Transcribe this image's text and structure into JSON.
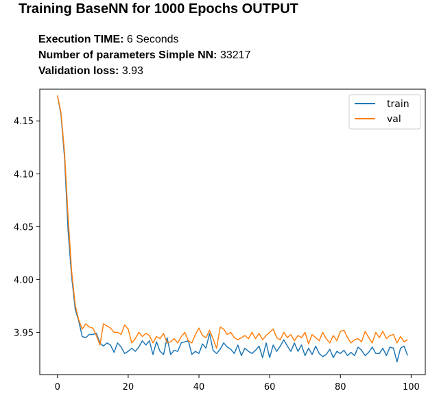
{
  "page": {
    "title": "Training BaseNN for 1000 Epochs OUTPUT"
  },
  "stats": [
    {
      "label": "Execution TIME:",
      "value": "6 Seconds"
    },
    {
      "label": "Number of parameters Simple NN:",
      "value": "33217"
    },
    {
      "label": "Validation loss:",
      "value": "3.93"
    }
  ],
  "colors": {
    "train": "#1f77b4",
    "val": "#ff7f0e"
  },
  "chart_data": {
    "type": "line",
    "title": "",
    "xlabel": "",
    "ylabel": "",
    "xlim": [
      -5,
      104
    ],
    "ylim": [
      3.91,
      4.18
    ],
    "xticks": [
      0,
      20,
      40,
      60,
      80,
      100
    ],
    "xtick_labels": [
      "0",
      "20",
      "40",
      "60",
      "80",
      "100"
    ],
    "yticks": [
      3.95,
      4.0,
      4.05,
      4.1,
      4.15
    ],
    "ytick_labels": [
      "3.95",
      "4.00",
      "4.05",
      "4.10",
      "4.15"
    ],
    "legend": "upper right",
    "grid": false,
    "x": [
      0,
      1,
      2,
      3,
      4,
      5,
      6,
      7,
      8,
      9,
      10,
      11,
      12,
      13,
      14,
      15,
      16,
      17,
      18,
      19,
      20,
      21,
      22,
      23,
      24,
      25,
      26,
      27,
      28,
      29,
      30,
      31,
      32,
      33,
      34,
      35,
      36,
      37,
      38,
      39,
      40,
      41,
      42,
      43,
      44,
      45,
      46,
      47,
      48,
      49,
      50,
      51,
      52,
      53,
      54,
      55,
      56,
      57,
      58,
      59,
      60,
      61,
      62,
      63,
      64,
      65,
      66,
      67,
      68,
      69,
      70,
      71,
      72,
      73,
      74,
      75,
      76,
      77,
      78,
      79,
      80,
      81,
      82,
      83,
      84,
      85,
      86,
      87,
      88,
      89,
      90,
      91,
      92,
      93,
      94,
      95,
      96,
      97,
      98,
      99
    ],
    "series": [
      {
        "name": "train",
        "values": [
          4.174,
          4.156,
          4.115,
          4.047,
          4.003,
          3.972,
          3.961,
          3.946,
          3.945,
          3.948,
          3.948,
          3.949,
          3.94,
          3.937,
          3.94,
          3.938,
          3.931,
          3.94,
          3.936,
          3.93,
          3.932,
          3.935,
          3.932,
          3.936,
          3.942,
          3.938,
          3.942,
          3.929,
          3.941,
          3.932,
          3.929,
          3.945,
          3.929,
          3.933,
          3.932,
          3.94,
          3.941,
          3.942,
          3.929,
          3.932,
          3.93,
          3.939,
          3.935,
          3.949,
          3.933,
          3.93,
          3.934,
          3.94,
          3.936,
          3.934,
          3.93,
          3.938,
          3.928,
          3.935,
          3.932,
          3.93,
          3.933,
          3.937,
          3.926,
          3.94,
          3.926,
          3.938,
          3.932,
          3.937,
          3.943,
          3.937,
          3.932,
          3.94,
          3.932,
          3.938,
          3.928,
          3.935,
          3.929,
          3.937,
          3.93,
          3.927,
          3.929,
          3.934,
          3.926,
          3.932,
          3.93,
          3.933,
          3.928,
          3.931,
          3.928,
          3.936,
          3.933,
          3.928,
          3.931,
          3.936,
          3.93,
          3.93,
          3.935,
          3.928,
          3.936,
          3.935,
          3.922,
          3.935,
          3.937,
          3.928
        ]
      },
      {
        "name": "val",
        "values": [
          4.174,
          4.158,
          4.12,
          4.06,
          4.008,
          3.976,
          3.962,
          3.953,
          3.958,
          3.955,
          3.954,
          3.947,
          3.938,
          3.958,
          3.956,
          3.954,
          3.95,
          3.95,
          3.948,
          3.957,
          3.953,
          3.94,
          3.944,
          3.95,
          3.946,
          3.949,
          3.947,
          3.94,
          3.946,
          3.944,
          3.949,
          3.94,
          3.941,
          3.944,
          3.94,
          3.946,
          3.95,
          3.942,
          3.94,
          3.948,
          3.954,
          3.947,
          3.945,
          3.952,
          3.944,
          3.935,
          3.955,
          3.953,
          3.948,
          3.95,
          3.945,
          3.943,
          3.945,
          3.947,
          3.944,
          3.95,
          3.944,
          3.949,
          3.943,
          3.947,
          3.95,
          3.953,
          3.945,
          3.943,
          3.95,
          3.945,
          3.948,
          3.942,
          3.947,
          3.945,
          3.95,
          3.939,
          3.948,
          3.945,
          3.942,
          3.95,
          3.944,
          3.94,
          3.947,
          3.942,
          3.951,
          3.952,
          3.945,
          3.94,
          3.943,
          3.944,
          3.941,
          3.951,
          3.945,
          3.94,
          3.95,
          3.945,
          3.951,
          3.944,
          3.947,
          3.948,
          3.94,
          3.946,
          3.941,
          3.943
        ]
      }
    ]
  }
}
